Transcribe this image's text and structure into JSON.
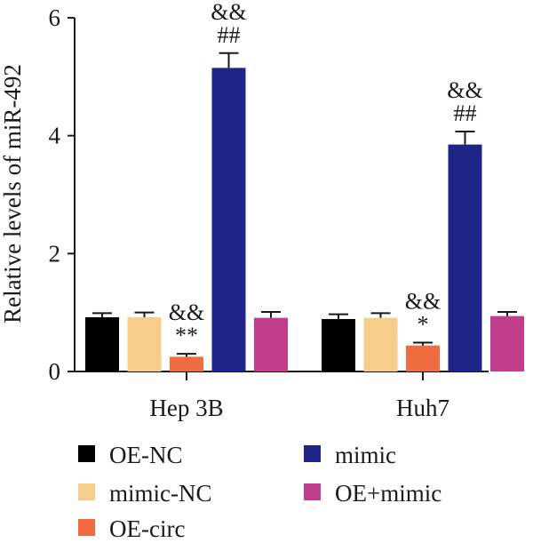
{
  "chart_data": {
    "type": "bar",
    "title": "",
    "xlabel": "",
    "ylabel": "Relative levels of miR-492",
    "ylim": [
      0,
      6
    ],
    "yticks": [
      0,
      2,
      4,
      6
    ],
    "grid": false,
    "legend_position": "bottom",
    "categories": [
      "Hep 3B",
      "Huh7"
    ],
    "series": [
      {
        "name": "OE-NC",
        "color": "#000000",
        "values": [
          0.92,
          0.89
        ],
        "errors": [
          0.07,
          0.08
        ]
      },
      {
        "name": "mimic-NC",
        "color": "#f7cd8b",
        "values": [
          0.92,
          0.91
        ],
        "errors": [
          0.08,
          0.08
        ]
      },
      {
        "name": "OE-circ",
        "color": "#ef6b40",
        "values": [
          0.25,
          0.44
        ],
        "errors": [
          0.05,
          0.05
        ]
      },
      {
        "name": "mimic",
        "color": "#1f2488",
        "values": [
          5.15,
          3.85
        ],
        "errors": [
          0.25,
          0.22
        ]
      },
      {
        "name": "OE+mimic",
        "color": "#c03e8c",
        "values": [
          0.91,
          0.94
        ],
        "errors": [
          0.1,
          0.07
        ]
      }
    ],
    "annotations": [
      {
        "category": "Hep 3B",
        "series": "OE-circ",
        "lines": [
          "&&",
          "**"
        ]
      },
      {
        "category": "Hep 3B",
        "series": "mimic",
        "lines": [
          "&&",
          "##"
        ]
      },
      {
        "category": "Huh7",
        "series": "OE-circ",
        "lines": [
          "&&",
          "*"
        ]
      },
      {
        "category": "Huh7",
        "series": "mimic",
        "lines": [
          "&&",
          "##"
        ]
      }
    ]
  }
}
